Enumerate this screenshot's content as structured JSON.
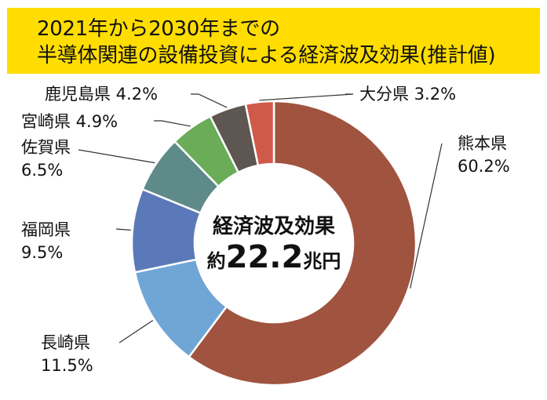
{
  "title": {
    "line1": "2021年から2030年までの",
    "line2": "半導体関連の設備投資による経済波及効果(推計値)"
  },
  "center": {
    "label": "経済波及効果",
    "prefix": "約",
    "value": "22.2",
    "unit": "兆円"
  },
  "chart_data": {
    "type": "pie",
    "donut": true,
    "unit": "%",
    "title": "2021年から2030年までの半導体関連の設備投資による経済波及効果(推計値)",
    "slices": [
      {
        "name": "熊本県",
        "value": 60.2,
        "color": "#a0533f"
      },
      {
        "name": "長崎県",
        "value": 11.5,
        "color": "#6fa6d6"
      },
      {
        "name": "福岡県",
        "value": 9.5,
        "color": "#5b79b9"
      },
      {
        "name": "佐賀県",
        "value": 6.5,
        "color": "#5e8a89"
      },
      {
        "name": "宮崎県",
        "value": 4.9,
        "color": "#6aac58"
      },
      {
        "name": "鹿児島県",
        "value": 4.2,
        "color": "#5e5651"
      },
      {
        "name": "大分県",
        "value": 3.2,
        "color": "#d05a4a"
      }
    ]
  }
}
